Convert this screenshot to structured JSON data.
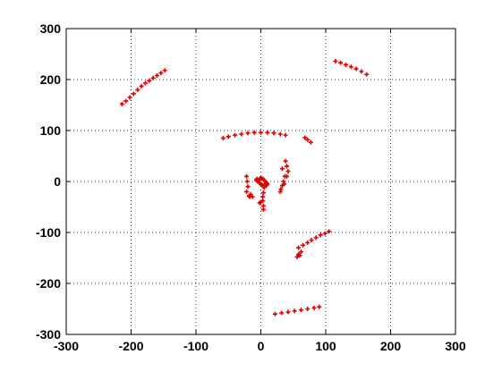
{
  "chart_data": {
    "type": "scatter",
    "title": "",
    "xlabel": "",
    "ylabel": "",
    "xlim": [
      -300,
      300
    ],
    "ylim": [
      -300,
      300
    ],
    "x_ticks": [
      -300,
      -200,
      -100,
      0,
      100,
      200,
      300
    ],
    "y_ticks": [
      -300,
      -200,
      -100,
      0,
      100,
      200,
      300
    ],
    "x_tick_labels": [
      "-300",
      "-200",
      "-100",
      "0",
      "100",
      "200",
      "300"
    ],
    "y_tick_labels": [
      "-300",
      "-200",
      "-100",
      "0",
      "100",
      "200",
      "300"
    ],
    "grid": "on (dotted)",
    "legend": "none",
    "marker": "plus",
    "color": "#e00000",
    "series": [
      {
        "x": [
          -214,
          -208,
          -202,
          -196,
          -190,
          -184,
          -178,
          -172,
          -166,
          -160,
          -154,
          -148,
          115,
          123,
          131,
          139,
          147,
          155,
          163,
          -58,
          -50,
          -40,
          -30,
          -20,
          -10,
          0,
          10,
          20,
          30,
          38,
          68,
          72,
          77,
          -22,
          -21,
          -20,
          -22,
          -18,
          -17,
          -16,
          -13,
          3,
          4,
          5,
          6,
          3,
          0,
          -2,
          38,
          40,
          42,
          37,
          35,
          33,
          31,
          30,
          36,
          40,
          33,
          58,
          65,
          72,
          78,
          85,
          92,
          99,
          105,
          58,
          62,
          56,
          60,
          22,
          32,
          42,
          52,
          62,
          72,
          82,
          90,
          -5,
          -3,
          -1,
          1,
          3,
          5,
          7,
          9,
          10,
          9,
          7,
          5,
          2,
          0,
          -2,
          -4,
          -6,
          -7,
          -6,
          4,
          4
        ],
        "y": [
          152,
          158,
          165,
          172,
          180,
          187,
          193,
          198,
          203,
          208,
          213,
          218,
          236,
          233,
          229,
          225,
          221,
          216,
          210,
          85,
          88,
          91,
          93,
          95,
          96,
          96,
          96,
          95,
          93,
          91,
          86,
          82,
          77,
          10,
          0,
          -10,
          -20,
          -28,
          -30,
          -25,
          -30,
          -30,
          -22,
          -12,
          -5,
          -38,
          -40,
          -42,
          40,
          30,
          20,
          10,
          0,
          -8,
          -15,
          -20,
          -5,
          10,
          25,
          -130,
          -125,
          -120,
          -115,
          -110,
          -105,
          -102,
          -98,
          -143,
          -138,
          -148,
          -145,
          -260,
          -258,
          -256,
          -254,
          -252,
          -250,
          -248,
          -246,
          0,
          4,
          6,
          6,
          5,
          3,
          0,
          -3,
          -5,
          -7,
          -8,
          -8,
          -7,
          -5,
          -3,
          0,
          2,
          3,
          5,
          -48,
          -55
        ]
      }
    ]
  }
}
